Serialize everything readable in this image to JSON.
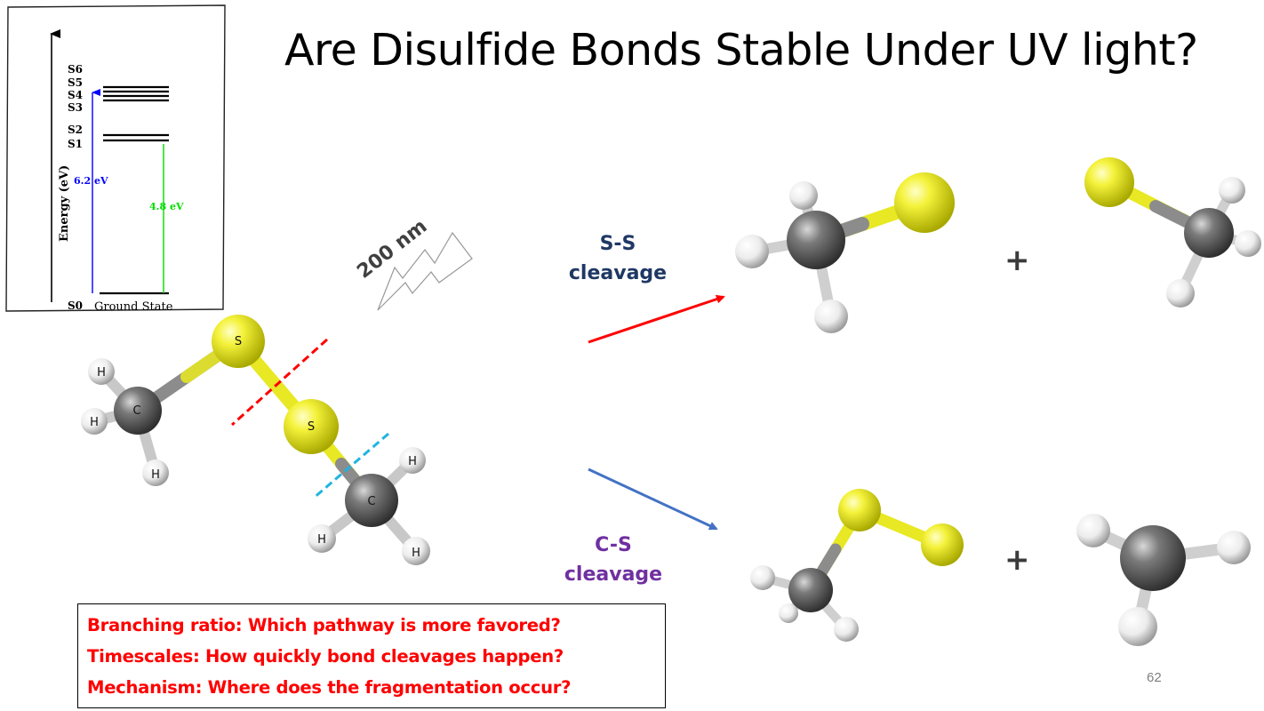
{
  "title": "Are Disulfide Bonds Stable Under UV light?",
  "energy_diagram": {
    "axis_label": "Energy (eV)",
    "states": [
      "S6",
      "S5",
      "S4",
      "S3",
      "S2",
      "S1",
      "S0"
    ],
    "ground_state_label": "Ground State",
    "transition_blue": "6.2 eV",
    "transition_green": "4.8 eV"
  },
  "excitation_label": "200 nm",
  "pathways": {
    "ss_cleavage": "S-S\ncleavage",
    "cs_cleavage": "C-S\ncleavage"
  },
  "molecule_atoms": {
    "sulfur": "S",
    "carbon": "C",
    "hydrogen": "H"
  },
  "plus_sign": "+",
  "questions": [
    "Branching ratio: Which pathway is more favored?",
    "Timescales: How quickly bond cleavages happen?",
    "Mechanism: Where does the fragmentation occur?"
  ],
  "page_number": "62",
  "colors": {
    "sulfur": "#e8e824",
    "carbon": "#6b6b6b",
    "hydrogen": "#f2f2f2",
    "ss_arrow": "#ff0000",
    "cs_arrow": "#4472c4",
    "ss_cut": "#ff0000",
    "cs_cut": "#1fb4e0",
    "excitation_blue": "#0000ff",
    "excitation_green": "#00dd00"
  }
}
